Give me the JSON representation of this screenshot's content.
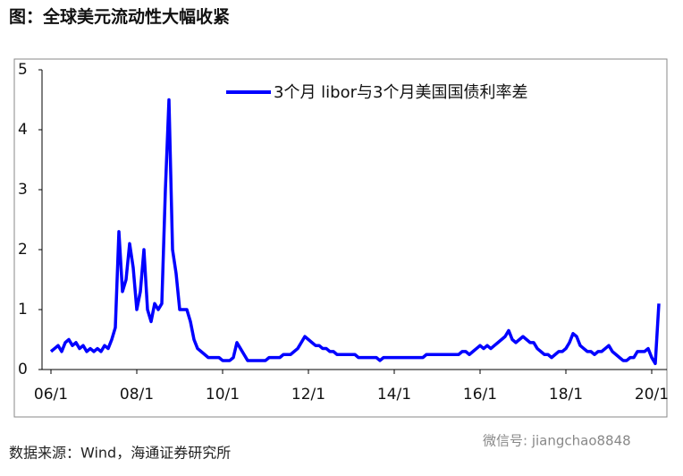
{
  "header": {
    "title": "图：全球美元流动性大幅收紧"
  },
  "chart_data": {
    "type": "line",
    "x": [
      "06/1",
      "06/2",
      "06/3",
      "06/4",
      "06/5",
      "06/6",
      "06/7",
      "06/8",
      "06/9",
      "06/10",
      "06/11",
      "06/12",
      "07/1",
      "07/2",
      "07/3",
      "07/4",
      "07/5",
      "07/6",
      "07/7",
      "07/8",
      "07/9",
      "07/10",
      "07/11",
      "07/12",
      "08/1",
      "08/2",
      "08/3",
      "08/4",
      "08/5",
      "08/6",
      "08/7",
      "08/8",
      "08/9",
      "08/10",
      "08/11",
      "08/12",
      "09/1",
      "09/2",
      "09/3",
      "09/4",
      "09/5",
      "09/6",
      "09/7",
      "09/8",
      "09/9",
      "09/10",
      "09/11",
      "09/12",
      "10/1",
      "10/2",
      "10/3",
      "10/4",
      "10/5",
      "10/6",
      "10/7",
      "10/8",
      "10/9",
      "10/10",
      "10/11",
      "10/12",
      "11/1",
      "11/2",
      "11/3",
      "11/4",
      "11/5",
      "11/6",
      "11/7",
      "11/8",
      "11/9",
      "11/10",
      "11/11",
      "11/12",
      "12/1",
      "12/2",
      "12/3",
      "12/4",
      "12/5",
      "12/6",
      "12/7",
      "12/8",
      "12/9",
      "12/10",
      "12/11",
      "12/12",
      "13/1",
      "13/2",
      "13/3",
      "13/4",
      "13/5",
      "13/6",
      "13/7",
      "13/8",
      "13/9",
      "13/10",
      "13/11",
      "13/12",
      "14/1",
      "14/2",
      "14/3",
      "14/4",
      "14/5",
      "14/6",
      "14/7",
      "14/8",
      "14/9",
      "14/10",
      "14/11",
      "14/12",
      "15/1",
      "15/2",
      "15/3",
      "15/4",
      "15/5",
      "15/6",
      "15/7",
      "15/8",
      "15/9",
      "15/10",
      "15/11",
      "15/12",
      "16/1",
      "16/2",
      "16/3",
      "16/4",
      "16/5",
      "16/6",
      "16/7",
      "16/8",
      "16/9",
      "16/10",
      "16/11",
      "16/12",
      "17/1",
      "17/2",
      "17/3",
      "17/4",
      "17/5",
      "17/6",
      "17/7",
      "17/8",
      "17/9",
      "17/10",
      "17/11",
      "17/12",
      "18/1",
      "18/2",
      "18/3",
      "18/4",
      "18/5",
      "18/6",
      "18/7",
      "18/8",
      "18/9",
      "18/10",
      "18/11",
      "18/12",
      "19/1",
      "19/2",
      "19/3",
      "19/4",
      "19/5",
      "19/6",
      "19/7",
      "19/8",
      "19/9",
      "19/10",
      "19/11",
      "19/12",
      "20/1",
      "20/2",
      "20/3"
    ],
    "series": [
      {
        "name": "3个月 libor与3个月美国国债利率差",
        "color": "#0000ff",
        "values": [
          0.3,
          0.35,
          0.4,
          0.3,
          0.45,
          0.5,
          0.4,
          0.45,
          0.35,
          0.4,
          0.3,
          0.35,
          0.3,
          0.35,
          0.3,
          0.4,
          0.35,
          0.5,
          0.7,
          2.3,
          1.3,
          1.5,
          2.1,
          1.7,
          1.0,
          1.3,
          2.0,
          1.0,
          0.8,
          1.1,
          1.0,
          1.1,
          3.0,
          4.5,
          2.0,
          1.6,
          1.0,
          1.0,
          1.0,
          0.8,
          0.5,
          0.35,
          0.3,
          0.25,
          0.2,
          0.2,
          0.2,
          0.2,
          0.15,
          0.15,
          0.15,
          0.2,
          0.45,
          0.35,
          0.25,
          0.15,
          0.15,
          0.15,
          0.15,
          0.15,
          0.15,
          0.2,
          0.2,
          0.2,
          0.2,
          0.25,
          0.25,
          0.25,
          0.3,
          0.35,
          0.45,
          0.55,
          0.5,
          0.45,
          0.4,
          0.4,
          0.35,
          0.35,
          0.3,
          0.3,
          0.25,
          0.25,
          0.25,
          0.25,
          0.25,
          0.25,
          0.2,
          0.2,
          0.2,
          0.2,
          0.2,
          0.2,
          0.15,
          0.2,
          0.2,
          0.2,
          0.2,
          0.2,
          0.2,
          0.2,
          0.2,
          0.2,
          0.2,
          0.2,
          0.2,
          0.25,
          0.25,
          0.25,
          0.25,
          0.25,
          0.25,
          0.25,
          0.25,
          0.25,
          0.25,
          0.3,
          0.3,
          0.25,
          0.3,
          0.35,
          0.4,
          0.35,
          0.4,
          0.35,
          0.4,
          0.45,
          0.5,
          0.55,
          0.65,
          0.5,
          0.45,
          0.5,
          0.55,
          0.5,
          0.45,
          0.45,
          0.35,
          0.3,
          0.25,
          0.25,
          0.2,
          0.25,
          0.3,
          0.3,
          0.35,
          0.45,
          0.6,
          0.55,
          0.4,
          0.35,
          0.3,
          0.3,
          0.25,
          0.3,
          0.3,
          0.35,
          0.4,
          0.3,
          0.25,
          0.2,
          0.15,
          0.15,
          0.2,
          0.2,
          0.3,
          0.3,
          0.3,
          0.35,
          0.2,
          0.1,
          1.1
        ]
      }
    ],
    "xticks": [
      "06/1",
      "08/1",
      "10/1",
      "12/1",
      "14/1",
      "16/1",
      "18/1",
      "20/1"
    ],
    "ylim": [
      0,
      5
    ],
    "yticks": [
      0,
      1,
      2,
      3,
      4,
      5
    ],
    "grid": false,
    "legend": "top-right"
  },
  "footer": {
    "source": "数据来源：Wind，海通证券研究所",
    "watermark": "微信号: jiangchao8848"
  }
}
